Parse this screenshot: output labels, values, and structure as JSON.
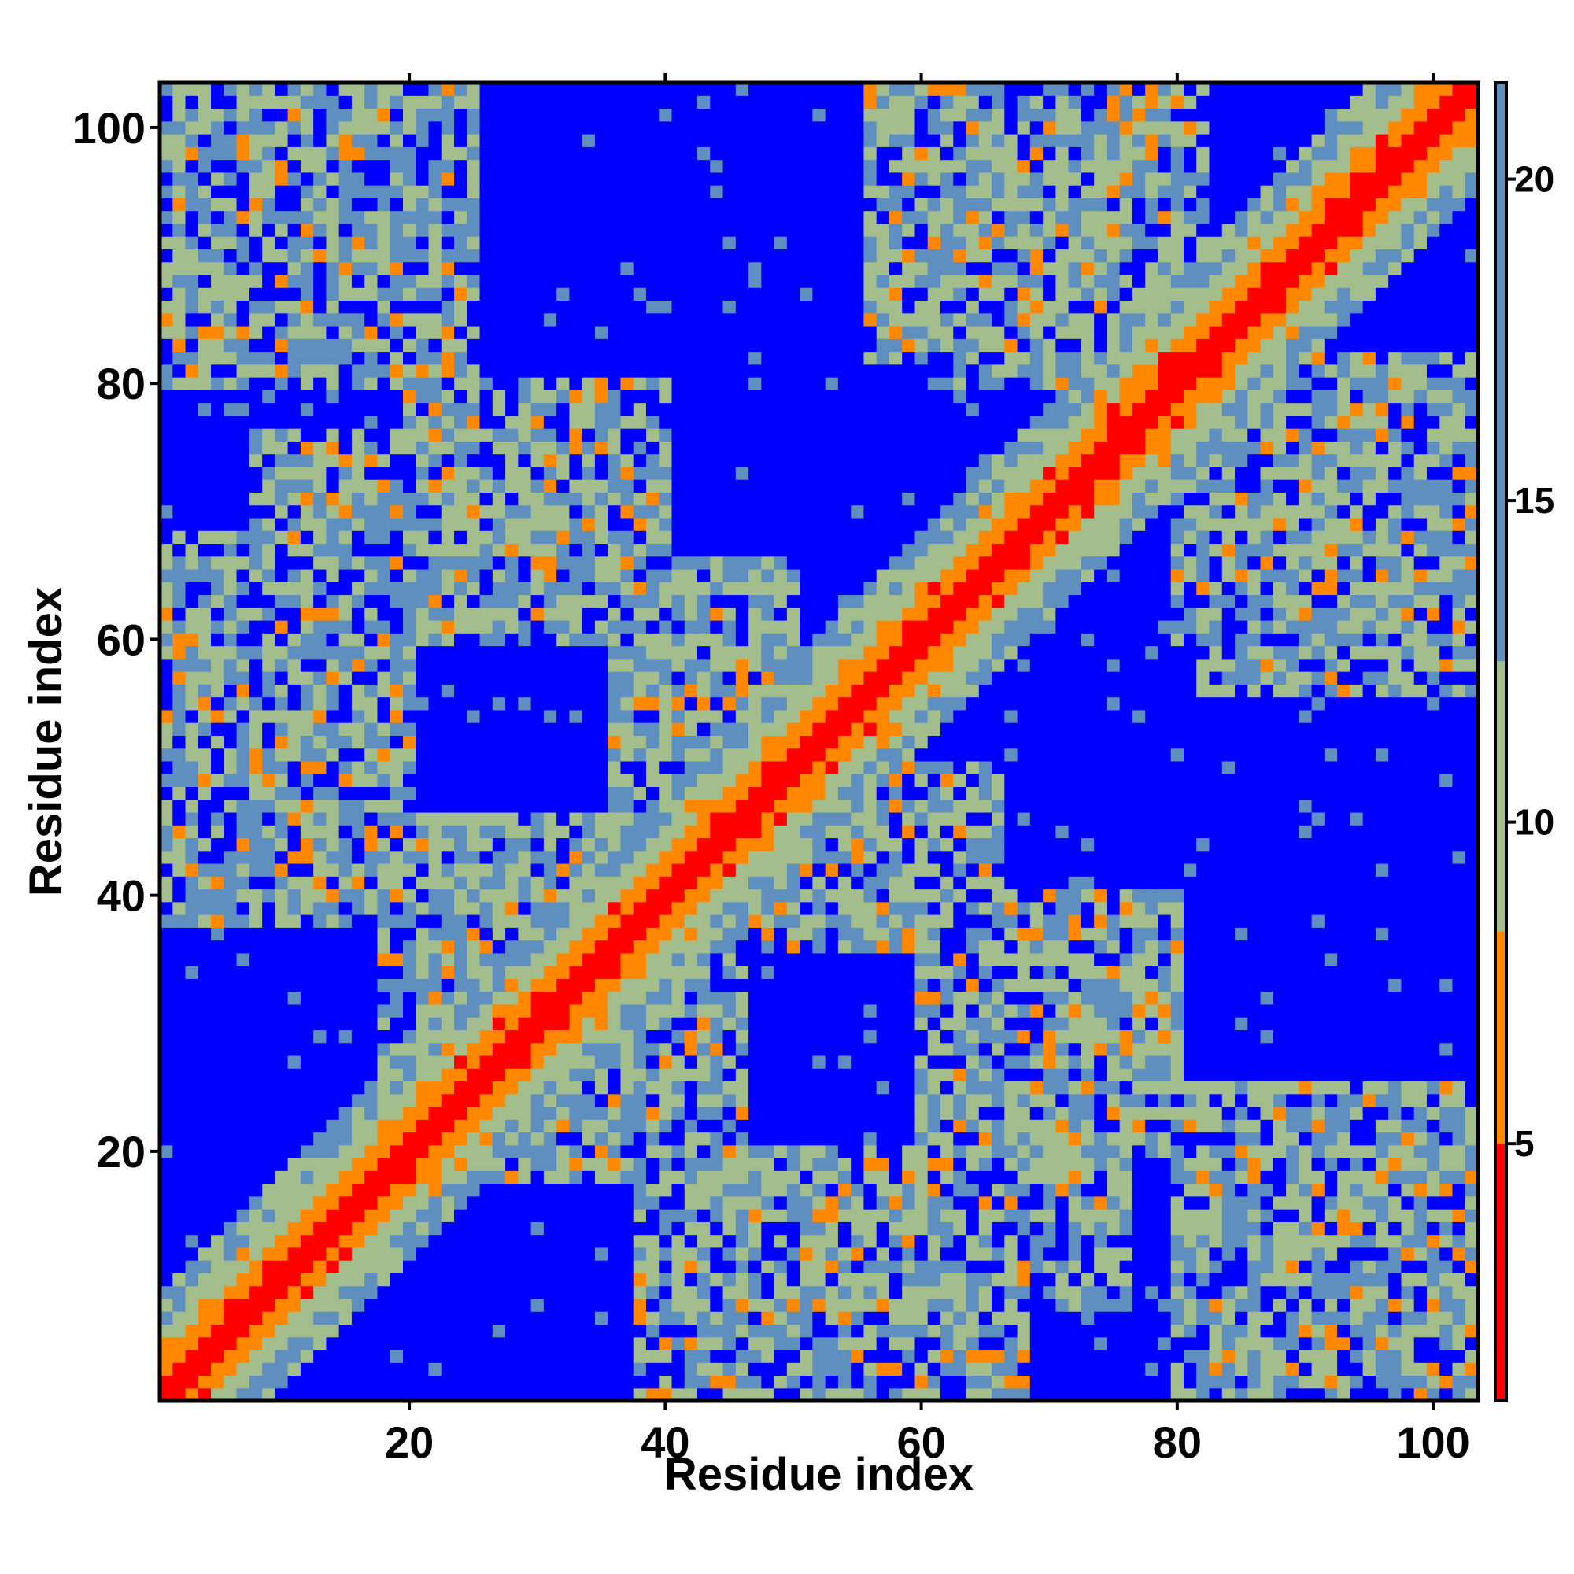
{
  "chart_data": {
    "type": "heatmap",
    "title": "",
    "xlabel": "Residue index",
    "ylabel": "Residue index",
    "xlim": [
      1,
      103
    ],
    "ylim": [
      1,
      103
    ],
    "x_ticks": [
      20,
      40,
      60,
      80,
      100
    ],
    "y_ticks": [
      20,
      40,
      60,
      80,
      100
    ],
    "colorbar": {
      "range": [
        1,
        21.5
      ],
      "ticks": [
        5,
        10,
        15,
        20
      ],
      "colors": {
        "contact": "#ff0000",
        "near": "#ff8800",
        "mid": "#a4bd8c",
        "far": "#5f8fbf",
        "background": "#0000ff"
      }
    },
    "matrix_size": 103,
    "structure": {
      "diagonal_band_halfwidth": 8,
      "contact_blocks": [
        {
          "x": [
            1,
            20
          ],
          "y": [
            82,
            103
          ]
        },
        {
          "x": [
            8,
            38
          ],
          "y": [
            62,
            76
          ]
        },
        {
          "x": [
            1,
            20
          ],
          "y": [
            38,
            62
          ]
        },
        {
          "x": [
            40,
            68
          ],
          "y": [
            1,
            18
          ]
        },
        {
          "x": [
            60,
            82
          ],
          "y": [
            80,
            103
          ]
        },
        {
          "x": [
            80,
            103
          ],
          "y": [
            1,
            25
          ]
        },
        {
          "x": [
            60,
            80
          ],
          "y": [
            20,
            40
          ]
        },
        {
          "x": [
            82,
            103
          ],
          "y": [
            56,
            76
          ]
        },
        {
          "x": [
            22,
            46
          ],
          "y": [
            18,
            46
          ]
        },
        {
          "x": [
            36,
            50
          ],
          "y": [
            46,
            66
          ]
        }
      ]
    }
  }
}
